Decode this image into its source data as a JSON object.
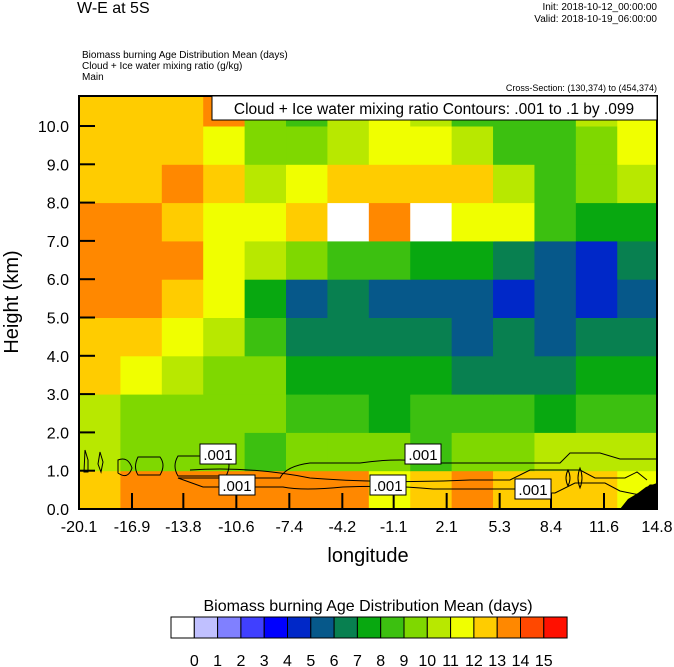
{
  "header": {
    "title": "W-E at 5S",
    "init": "Init: 2018-10-12_00:00:00",
    "valid": "Valid: 2018-10-19_06:00:00",
    "fields": [
      "Biomass burning Age Distribution Mean   (days)",
      "Cloud + Ice water mixing ratio   (g/kg)",
      "Main"
    ],
    "cross_section": "Cross-Section: (130,374) to (454,374)"
  },
  "chart_data": {
    "type": "heatmap",
    "title": "Biomass burning Age Distribution Mean  (days)",
    "contour_title": "Cloud + Ice water mixing ratio Contours: .001 to .1 by .099",
    "xlabel": "longitude",
    "ylabel": "Height (km)",
    "xlim": [
      -20.1,
      14.8
    ],
    "ylim": [
      0,
      10.8
    ],
    "xticks": [
      "-20.1",
      "-16.9",
      "-13.8",
      "-10.6",
      "-7.4",
      "-4.2",
      "-1.1",
      "2.1",
      "5.3",
      "8.4",
      "11.6",
      "14.8"
    ],
    "yticks": [
      "0.0",
      "1.0",
      "2.0",
      "3.0",
      "4.0",
      "5.0",
      "6.0",
      "7.0",
      "8.0",
      "9.0",
      "10.0"
    ],
    "grid_note_lon_step_deg": 2.5,
    "grid_note_height_step_km": 1,
    "color_bins_note": "bin index: 0 = below 0 / missing, i = age between (i-1) and i days, 16 = above 15",
    "bins": [
      [
        13,
        14,
        14,
        14,
        14,
        14,
        14,
        12,
        13,
        14,
        13,
        13,
        13,
        12
      ],
      [
        11,
        10,
        10,
        10,
        9,
        10,
        10,
        10,
        9,
        10,
        10,
        11,
        11,
        11
      ],
      [
        11,
        10,
        10,
        10,
        10,
        9,
        9,
        8,
        9,
        9,
        9,
        8,
        9,
        9
      ],
      [
        13,
        12,
        11,
        10,
        10,
        8,
        8,
        8,
        8,
        7,
        7,
        7,
        8,
        8
      ],
      [
        13,
        13,
        12,
        11,
        9,
        7,
        7,
        7,
        7,
        6,
        7,
        6,
        7,
        7
      ],
      [
        14,
        14,
        13,
        12,
        8,
        6,
        7,
        6,
        6,
        6,
        5,
        6,
        5,
        6
      ],
      [
        14,
        14,
        14,
        12,
        11,
        10,
        9,
        9,
        8,
        8,
        7,
        6,
        5,
        7
      ],
      [
        14,
        14,
        13,
        12,
        12,
        13,
        0,
        14,
        0,
        12,
        12,
        9,
        8,
        8
      ],
      [
        13,
        13,
        14,
        13,
        11,
        12,
        13,
        13,
        13,
        13,
        11,
        9,
        10,
        11
      ],
      [
        13,
        13,
        13,
        12,
        10,
        10,
        11,
        12,
        12,
        11,
        9,
        9,
        10,
        12
      ],
      [
        13,
        13,
        13,
        14,
        10,
        9,
        11,
        12,
        11,
        9,
        9,
        9,
        11,
        12
      ]
    ],
    "contour_labels": [
      ".001",
      ".001",
      ".001",
      ".001",
      ".001"
    ],
    "colorbar": {
      "labels": [
        "0",
        "1",
        "2",
        "3",
        "4",
        "5",
        "6",
        "7",
        "8",
        "9",
        "10",
        "11",
        "12",
        "13",
        "14",
        "15"
      ],
      "colors": [
        "#ffffff",
        "#c0c0ff",
        "#8080ff",
        "#4040ff",
        "#0000ff",
        "#0028c8",
        "#06588a",
        "#088050",
        "#08a810",
        "#3cc010",
        "#7fd800",
        "#b8e800",
        "#f0ff00",
        "#ffcc00",
        "#ff8800",
        "#ff4800",
        "#ff1000"
      ]
    }
  }
}
